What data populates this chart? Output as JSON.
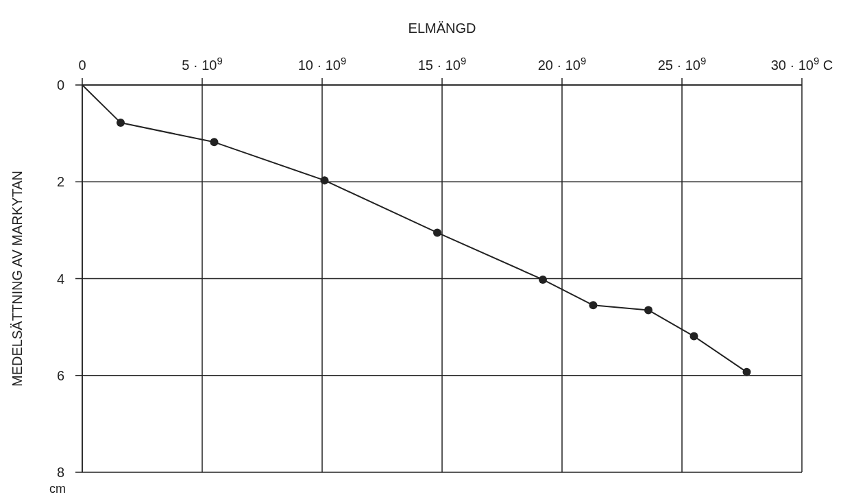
{
  "chart_data": {
    "type": "line",
    "xlabel": "ELMÄNGD",
    "ylabel": "MEDELSÄTTNING AV MARKYTAN",
    "xlim": [
      0,
      30000000000.0
    ],
    "ylim": [
      8,
      0
    ],
    "xticks": [
      0,
      {
        "value": 5000000000.0,
        "label": "5 · 10$^{9}$"
      },
      {
        "value": 10000000000.0,
        "label": "10 · 10$^{9}$"
      },
      {
        "value": 15000000000.0,
        "label": "15 · 10$^{9}$"
      },
      {
        "value": 20000000000.0,
        "label": "20 · 10$^{9}$"
      },
      {
        "value": 25000000000.0,
        "label": "25 · 10$^{9}$"
      },
      {
        "value": 30000000000.0,
        "label": "30 · 10$^{9}$ C"
      }
    ],
    "yticks": [
      0,
      2,
      4,
      6,
      8
    ],
    "grid": true,
    "annotations": [
      "cm"
    ],
    "series": [
      {
        "color": "#222222",
        "marker": "none",
        "x": [
          0,
          1600000000.0,
          5500000000.0,
          10100000000.0,
          14800000000.0,
          19200000000.0,
          21300000000.0,
          23600000000.0,
          25500000000.0,
          27700000000.0
        ],
        "values": [
          0,
          0.78,
          1.18,
          1.97,
          3.05,
          4.02,
          4.55,
          4.65,
          5.19,
          5.93
        ]
      },
      {
        "type": "scatter",
        "color": "#222222",
        "marker": "circle",
        "x": [
          1600000000.0,
          5500000000.0,
          10100000000.0,
          14800000000.0,
          19200000000.0,
          21300000000.0,
          23600000000.0,
          25500000000.0,
          27700000000.0
        ],
        "values": [
          0.78,
          1.18,
          1.97,
          3.05,
          4.02,
          4.55,
          4.65,
          5.19,
          5.93
        ]
      }
    ]
  }
}
